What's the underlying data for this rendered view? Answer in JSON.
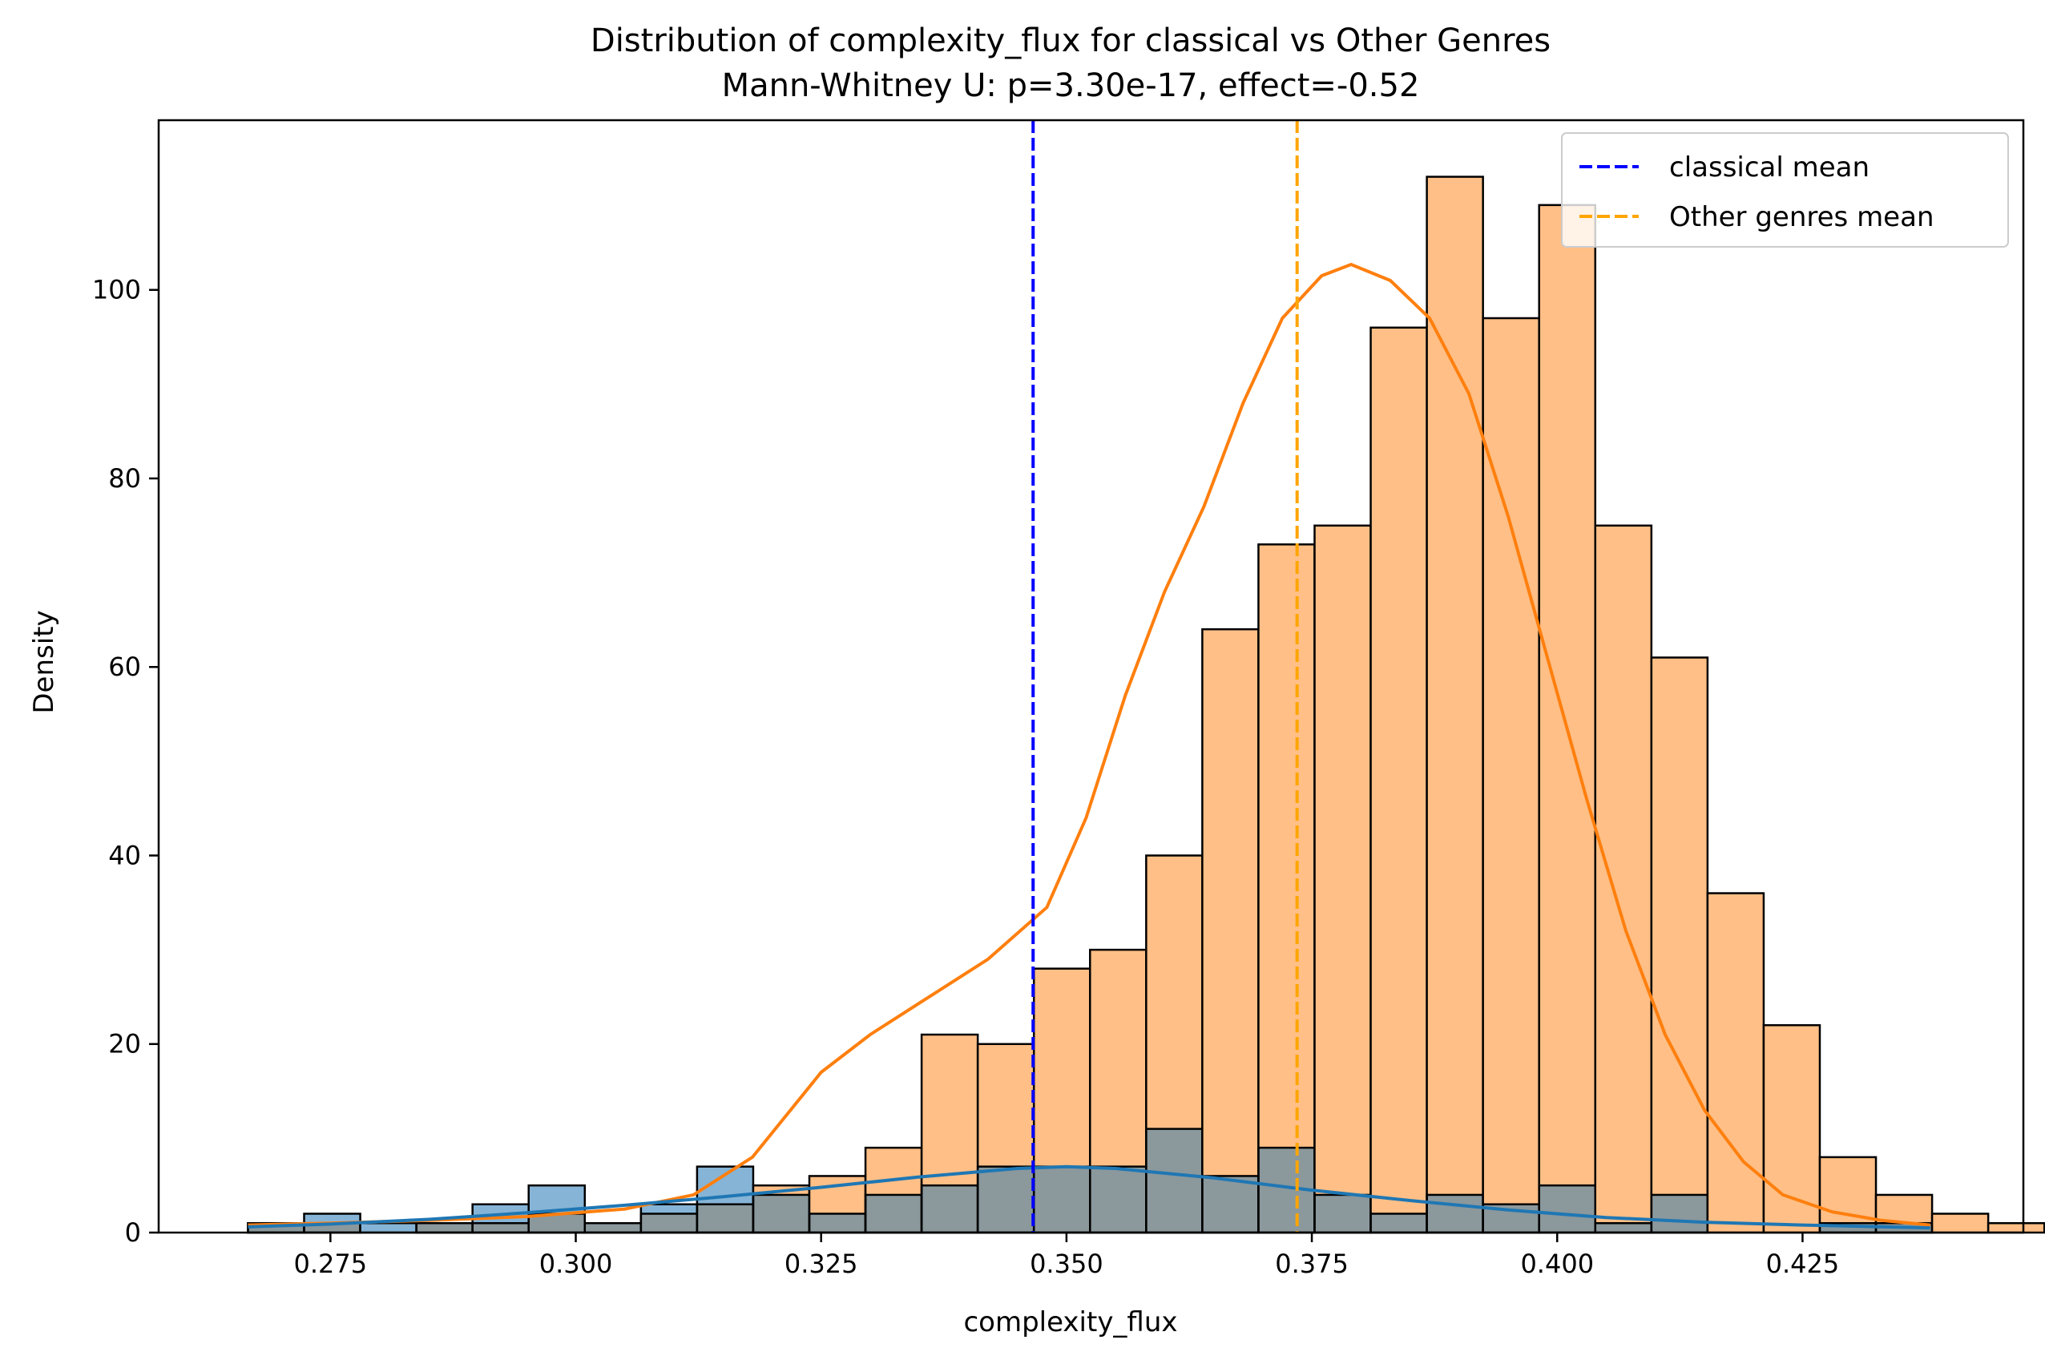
{
  "chart_data": {
    "type": "histogram",
    "title": "Distribution of complexity_flux for classical vs Other Genres",
    "subtitle": "Mann-Whitney U: p=3.30e-17, effect=-0.52",
    "xlabel": "complexity_flux",
    "ylabel": "Density",
    "xlim": [
      0.2575,
      0.4475
    ],
    "ylim": [
      0,
      118
    ],
    "xticks": [
      0.275,
      0.3,
      0.325,
      0.35,
      0.375,
      0.4,
      0.425
    ],
    "xtick_labels": [
      "0.275",
      "0.300",
      "0.325",
      "0.350",
      "0.375",
      "0.400",
      "0.425"
    ],
    "yticks": [
      0,
      20,
      40,
      60,
      80,
      100
    ],
    "ytick_labels": [
      "0",
      "20",
      "40",
      "60",
      "80",
      "100"
    ],
    "bin_start": 0.2666,
    "bin_width": 0.00572,
    "series": [
      {
        "id": "other",
        "color": "#ff7f0e",
        "fill": "#ffbf86",
        "values": [
          1,
          1,
          0,
          1,
          1,
          2,
          1,
          2,
          3,
          5,
          6,
          9,
          21,
          20,
          28,
          30,
          40,
          64,
          73,
          75,
          96,
          112,
          97,
          109,
          75,
          61,
          36,
          22,
          8,
          4,
          2,
          1
        ],
        "kde": [
          [
            0.2666,
            0.8
          ],
          [
            0.275,
            1.0
          ],
          [
            0.285,
            1.3
          ],
          [
            0.295,
            1.7
          ],
          [
            0.305,
            2.5
          ],
          [
            0.312,
            4.0
          ],
          [
            0.318,
            8.0
          ],
          [
            0.325,
            17.0
          ],
          [
            0.33,
            21.0
          ],
          [
            0.336,
            25.0
          ],
          [
            0.342,
            29.0
          ],
          [
            0.348,
            34.5
          ],
          [
            0.352,
            44.0
          ],
          [
            0.356,
            57.0
          ],
          [
            0.36,
            68.0
          ],
          [
            0.364,
            77.0
          ],
          [
            0.368,
            88.0
          ],
          [
            0.372,
            97.0
          ],
          [
            0.376,
            101.5
          ],
          [
            0.379,
            102.7
          ],
          [
            0.383,
            101.0
          ],
          [
            0.387,
            97.0
          ],
          [
            0.391,
            89.0
          ],
          [
            0.395,
            76.0
          ],
          [
            0.399,
            61.0
          ],
          [
            0.403,
            46.0
          ],
          [
            0.407,
            32.0
          ],
          [
            0.411,
            21.0
          ],
          [
            0.415,
            13.0
          ],
          [
            0.419,
            7.5
          ],
          [
            0.423,
            4.0
          ],
          [
            0.428,
            2.2
          ],
          [
            0.433,
            1.3
          ],
          [
            0.438,
            0.8
          ]
        ]
      },
      {
        "id": "classical",
        "color": "#1f77b4",
        "fill": "#86b4d6",
        "values": [
          1,
          2,
          1,
          1,
          3,
          5,
          1,
          3,
          7,
          4,
          2,
          4,
          5,
          7,
          7,
          7,
          11,
          6,
          9,
          4,
          2,
          4,
          3,
          5,
          1,
          4,
          0,
          0,
          1,
          1,
          0,
          0
        ],
        "kde": [
          [
            0.2666,
            0.6
          ],
          [
            0.275,
            0.9
          ],
          [
            0.285,
            1.4
          ],
          [
            0.295,
            2.1
          ],
          [
            0.305,
            2.9
          ],
          [
            0.315,
            3.8
          ],
          [
            0.325,
            4.8
          ],
          [
            0.335,
            5.9
          ],
          [
            0.345,
            6.8
          ],
          [
            0.35,
            7.0
          ],
          [
            0.355,
            6.8
          ],
          [
            0.365,
            5.8
          ],
          [
            0.375,
            4.5
          ],
          [
            0.385,
            3.4
          ],
          [
            0.395,
            2.4
          ],
          [
            0.405,
            1.6
          ],
          [
            0.415,
            1.1
          ],
          [
            0.425,
            0.8
          ],
          [
            0.438,
            0.5
          ]
        ]
      }
    ],
    "overlap_fill": "#8b989c",
    "mean_lines": [
      {
        "x": 0.3466,
        "color": "#0000ff",
        "label": "classical mean"
      },
      {
        "x": 0.3735,
        "color": "#ffa500",
        "label": "Other genres mean"
      }
    ],
    "legend_position": "top-right"
  }
}
